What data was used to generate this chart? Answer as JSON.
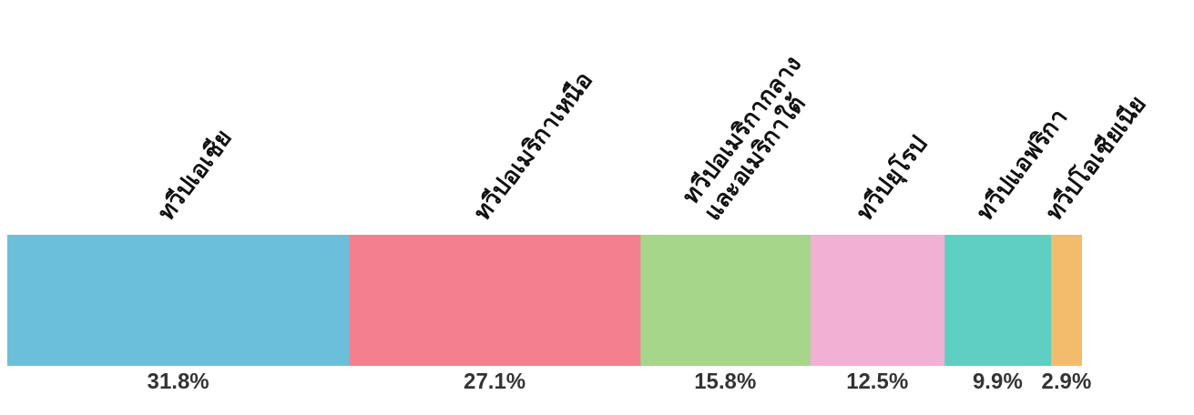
{
  "chart_data": {
    "type": "bar",
    "orientation": "horizontal",
    "stacked": true,
    "categories": [
      null
    ],
    "legend": false,
    "series": [
      {
        "name": "ทวีปเอเชีย",
        "color": "#6cbfdb",
        "values": [
          31.8
        ],
        "value_labels": [
          "31.8%"
        ]
      },
      {
        "name": "ทวีปอเมริกาเหนือ",
        "color": "#f4808f",
        "values": [
          27.1
        ],
        "value_labels": [
          "27.1%"
        ]
      },
      {
        "name": "ทวีปอเมริกากลาง\nและอเมริกาใต้",
        "color": "#a5d68a",
        "values": [
          15.8
        ],
        "value_labels": [
          "15.8%"
        ]
      },
      {
        "name": "ทวีปยุโรป",
        "color": "#f2b0d4",
        "values": [
          12.5
        ],
        "value_labels": [
          "12.5%"
        ]
      },
      {
        "name": "ทวีปแอฟริกา",
        "color": "#5ecfc2",
        "values": [
          9.9
        ],
        "value_labels": [
          "9.9%"
        ]
      },
      {
        "name": "ทวีปโอเชียเนีย",
        "color": "#f3bc6c",
        "values": [
          2.9
        ],
        "value_labels": [
          "2.9%"
        ]
      }
    ]
  }
}
